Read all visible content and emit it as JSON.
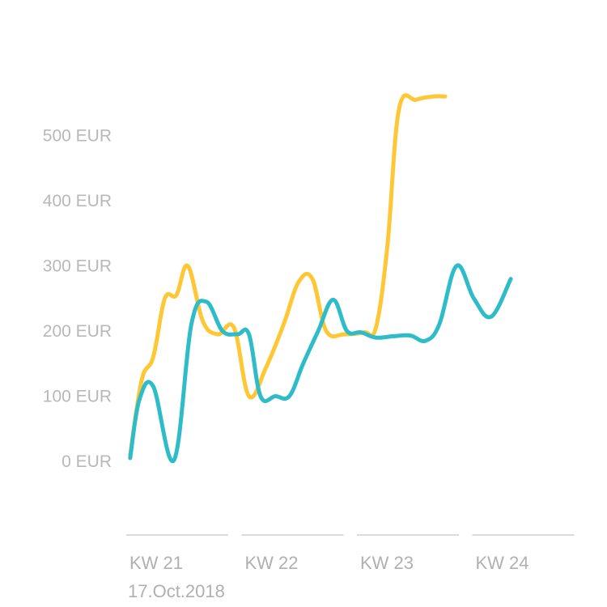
{
  "chart_data": {
    "type": "line",
    "title": "",
    "xlabel": "",
    "ylabel": "",
    "unit": "EUR",
    "ylim": [
      0,
      560
    ],
    "y_ticks": [
      {
        "value": 0,
        "label": "0 EUR"
      },
      {
        "value": 100,
        "label": "100 EUR"
      },
      {
        "value": 200,
        "label": "200 EUR"
      },
      {
        "value": 300,
        "label": "300 EUR"
      },
      {
        "value": 400,
        "label": "400 EUR"
      },
      {
        "value": 500,
        "label": "500 EUR"
      }
    ],
    "x_range": [
      21,
      24.85
    ],
    "weeks": [
      {
        "label": "KW 21",
        "start": 21
      },
      {
        "label": "KW 22",
        "start": 22
      },
      {
        "label": "KW 23",
        "start": 23
      },
      {
        "label": "KW 24",
        "start": 24
      }
    ],
    "date_label": "17.Oct.2018",
    "grid": false,
    "legend": "none",
    "series": [
      {
        "color": "#ffc736",
        "points": [
          [
            21.02,
            10
          ],
          [
            21.12,
            125
          ],
          [
            21.22,
            160
          ],
          [
            21.32,
            250
          ],
          [
            21.42,
            255
          ],
          [
            21.52,
            300
          ],
          [
            21.65,
            215
          ],
          [
            21.78,
            195
          ],
          [
            21.92,
            205
          ],
          [
            22.05,
            100
          ],
          [
            22.2,
            145
          ],
          [
            22.35,
            210
          ],
          [
            22.48,
            275
          ],
          [
            22.6,
            280
          ],
          [
            22.72,
            200
          ],
          [
            22.88,
            195
          ],
          [
            23.05,
            198
          ],
          [
            23.15,
            205
          ],
          [
            23.25,
            330
          ],
          [
            23.35,
            540
          ],
          [
            23.5,
            555
          ],
          [
            23.65,
            560
          ],
          [
            23.75,
            560
          ]
        ]
      },
      {
        "color": "#2fbcc9",
        "points": [
          [
            21.02,
            5
          ],
          [
            21.1,
            95
          ],
          [
            21.22,
            115
          ],
          [
            21.4,
            2
          ],
          [
            21.55,
            210
          ],
          [
            21.68,
            245
          ],
          [
            21.82,
            200
          ],
          [
            21.95,
            195
          ],
          [
            22.05,
            195
          ],
          [
            22.15,
            100
          ],
          [
            22.28,
            100
          ],
          [
            22.4,
            100
          ],
          [
            22.52,
            150
          ],
          [
            22.65,
            200
          ],
          [
            22.78,
            248
          ],
          [
            22.9,
            200
          ],
          [
            23.02,
            198
          ],
          [
            23.15,
            190
          ],
          [
            23.3,
            192
          ],
          [
            23.45,
            193
          ],
          [
            23.58,
            185
          ],
          [
            23.7,
            210
          ],
          [
            23.85,
            300
          ],
          [
            24.0,
            250
          ],
          [
            24.15,
            222
          ],
          [
            24.32,
            280
          ]
        ]
      }
    ]
  }
}
